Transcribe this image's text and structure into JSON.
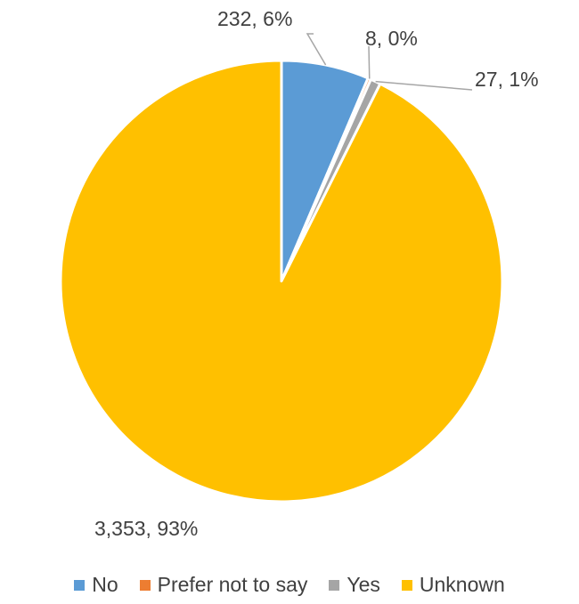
{
  "chart_data": {
    "type": "pie",
    "title": "",
    "categories": [
      "No",
      "Prefer not to say",
      "Yes",
      "Unknown"
    ],
    "values": [
      232,
      8,
      27,
      3353
    ],
    "percent_labels": [
      "6%",
      "0%",
      "1%",
      "93%"
    ],
    "data_labels": [
      "232, 6%",
      "8, 0%",
      "27, 1%",
      "3,353, 93%"
    ],
    "colors": [
      "#5B9BD5",
      "#ED7D31",
      "#A5A5A5",
      "#FFC000"
    ],
    "legend": {
      "position": "bottom",
      "entries": [
        "No",
        "Prefer not to say",
        "Yes",
        "Unknown"
      ]
    },
    "start_angle_deg": 0,
    "direction": "clockwise",
    "slice_border_color": "#ffffff"
  }
}
